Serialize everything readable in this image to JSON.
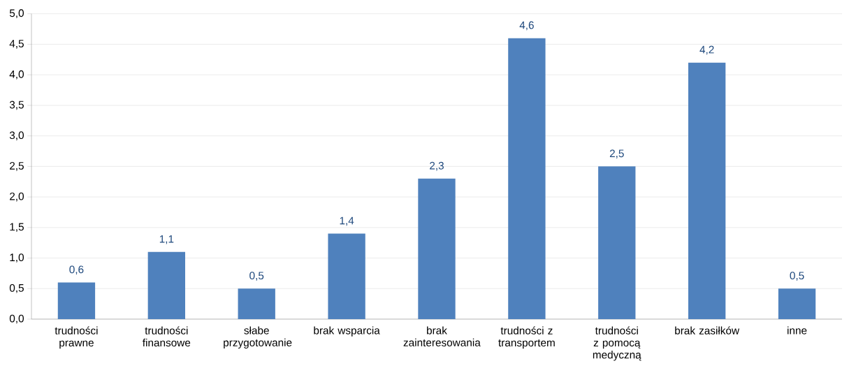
{
  "chart_data": {
    "type": "bar",
    "categories": [
      "trudności prawne",
      "trudności finansowe",
      "słabe przygotowanie",
      "brak wsparcia",
      "brak zainteresowania",
      "trudności z transportem",
      "trudności z pomocą medyczną",
      "brak zasiłków",
      "inne"
    ],
    "values": [
      0.6,
      1.1,
      0.5,
      1.4,
      2.3,
      4.6,
      2.5,
      4.2,
      0.5
    ],
    "value_labels": [
      "0,6",
      "1,1",
      "0,5",
      "1,4",
      "2,3",
      "4,6",
      "2,5",
      "4,2",
      "0,5"
    ],
    "color": "#4f81bd",
    "ylim": [
      0,
      5
    ],
    "yticks": [
      {
        "value": 0,
        "label": "0,0"
      },
      {
        "value": 0.5,
        "label": "0,5"
      },
      {
        "value": 1,
        "label": "1,0"
      },
      {
        "value": 1.5,
        "label": "1,5"
      },
      {
        "value": 2,
        "label": "2,0"
      },
      {
        "value": 2.5,
        "label": "2,5"
      },
      {
        "value": 3,
        "label": "3,0"
      },
      {
        "value": 3.5,
        "label": "3,5"
      },
      {
        "value": 4,
        "label": "4,0"
      },
      {
        "value": 4.5,
        "label": "4,5"
      },
      {
        "value": 5,
        "label": "5,0"
      }
    ],
    "grid": "y"
  }
}
